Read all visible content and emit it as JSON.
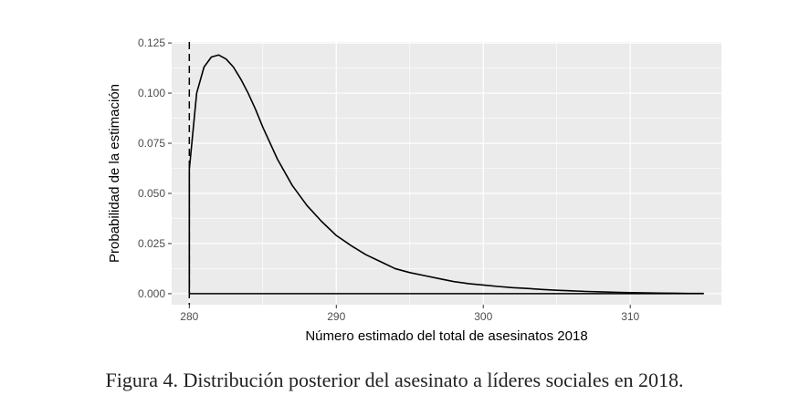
{
  "chart_data": {
    "type": "line",
    "xlabel": "Número estimado del total de asesinatos 2018",
    "ylabel": "Probabilidad de la estimación",
    "xlim": [
      278.8,
      316.2
    ],
    "ylim": [
      -0.0055,
      0.1255
    ],
    "x_ticks": [
      280,
      290,
      300,
      310
    ],
    "x_tick_labels": [
      "280",
      "290",
      "300",
      "310"
    ],
    "y_ticks": [
      0,
      0.025,
      0.05,
      0.075,
      0.1,
      0.125
    ],
    "y_tick_labels": [
      "0.000",
      "0.025",
      "0.050",
      "0.075",
      "0.100",
      "0.125"
    ],
    "grid": true,
    "colors": {
      "panel": "#ebebeb",
      "grid": "#ffffff",
      "line": "#000000"
    },
    "reference_line": {
      "x": 280,
      "style": "dashed"
    },
    "series": [
      {
        "x": [
          280,
          280.5,
          281,
          281.5,
          282,
          282.5,
          283,
          283.5,
          284,
          284.5,
          285,
          286,
          287,
          288,
          289,
          290,
          291,
          292,
          293,
          294,
          295,
          296,
          297,
          298,
          299,
          300,
          301,
          302,
          303,
          304,
          305,
          306,
          307,
          308,
          309,
          310,
          311,
          312,
          313,
          314,
          315
        ],
        "y": [
          0.062,
          0.1,
          0.113,
          0.118,
          0.119,
          0.117,
          0.113,
          0.107,
          0.1,
          0.092,
          0.083,
          0.067,
          0.054,
          0.044,
          0.036,
          0.029,
          0.024,
          0.0195,
          0.016,
          0.0125,
          0.0105,
          0.009,
          0.0075,
          0.006,
          0.005,
          0.0043,
          0.0036,
          0.003,
          0.0026,
          0.0021,
          0.0017,
          0.0014,
          0.0011,
          0.0009,
          0.0007,
          0.0005,
          0.0004,
          0.0003,
          0.0002,
          0.0001,
          0.0001
        ]
      }
    ],
    "baseline": {
      "x": [
        280,
        315
      ],
      "y": [
        0,
        0
      ]
    }
  },
  "caption": "Figura 4. Distribución posterior del asesinato a líderes sociales en 2018."
}
